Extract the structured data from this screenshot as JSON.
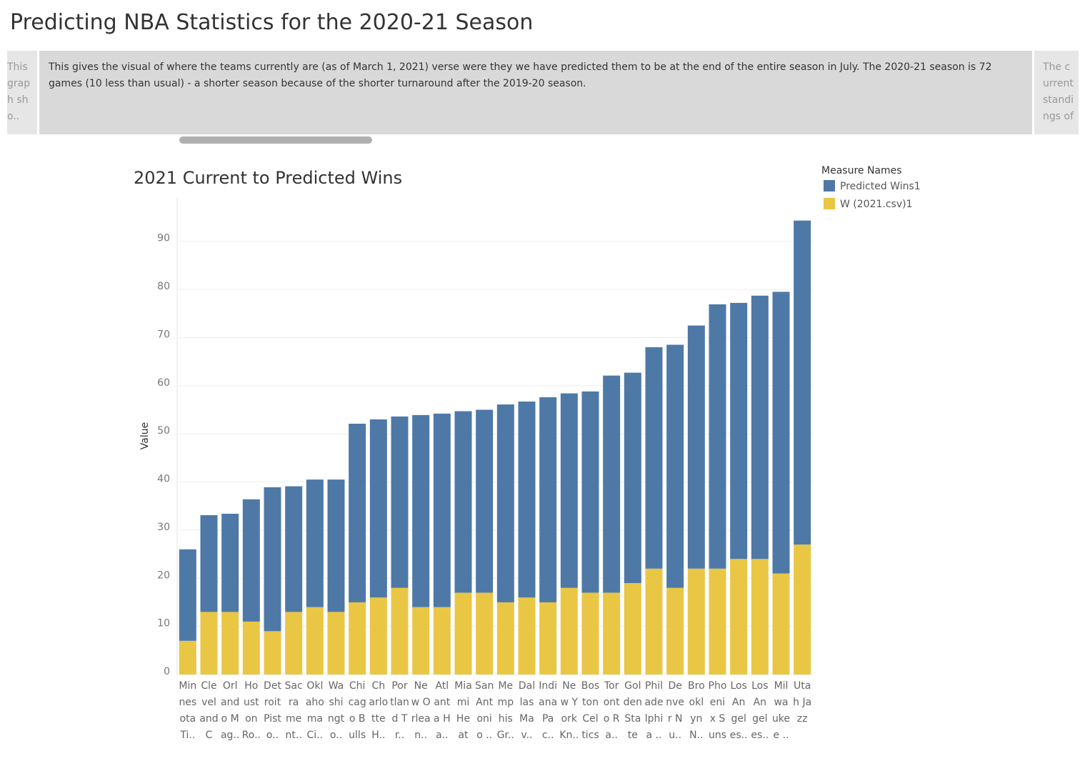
{
  "page_title": "Predicting NBA Statistics for the 2020-21 Season",
  "story_points": [
    "This graph sho..",
    "This gives the visual of where the teams currently are (as of March 1, 2021) verse were they we have  predicted them to be at the end of the entire season in July. The 2020-21 season is 72 games (10 less than usual) - a shorter season because of the shorter turnaround after the 2019-20 season.",
    "The current standings of .."
  ],
  "chart_data": {
    "type": "stacked_bar",
    "title": "2021 Current to Predicted Wins",
    "y_label": "Value",
    "legend_title": "Measure Names",
    "legend_position": "top-right",
    "grid": true,
    "categories": [
      "Minnesota Ti..",
      "Cleveland Ca..",
      "Orlando Mag..",
      "Houston Ro..",
      "Detroit Pisto..",
      "Sacrament..",
      "Oklahoma Ci..",
      "Washingto..",
      "Chicago Bulls",
      "Charlotte H..",
      "Portland Tr..",
      "New Orlean..",
      "Atlanta Ha..",
      "Miami Heat",
      "San Antonio ..",
      "Memphis Gr..",
      "Dallas Mav..",
      "Indiana Pac..",
      "New York Kn..",
      "Boston Celtics",
      "Toronto Ra..",
      "Golden State ..",
      "Philadelphia ..",
      "Denver Nu..",
      "Brooklyn N..",
      "Phoenix Suns",
      "Los Angeles..",
      "Los Angeles..",
      "Milwaukee ..",
      "Utah Jazz"
    ],
    "series": [
      {
        "name": "Predicted Wins1",
        "color": "#4e79a7",
        "values": [
          19.0,
          20.1,
          20.4,
          25.4,
          29.9,
          26.1,
          26.5,
          27.5,
          37.1,
          37.0,
          35.6,
          39.9,
          40.2,
          37.7,
          38.0,
          41.1,
          40.7,
          42.6,
          40.4,
          41.8,
          45.1,
          43.7,
          46.0,
          50.5,
          50.5,
          54.9,
          53.2,
          54.7,
          58.5,
          67.3
        ]
      },
      {
        "name": "W (2021.csv)1",
        "color": "#eac645",
        "values": [
          7,
          13,
          13,
          11,
          9,
          13,
          14,
          13,
          15,
          16,
          18,
          14,
          14,
          17,
          17,
          15,
          16,
          15,
          18,
          17,
          17,
          19,
          22,
          18,
          22,
          22,
          24,
          24,
          21,
          27
        ]
      }
    ],
    "ylim": [
      0,
      99
    ],
    "yticks": [
      0,
      10,
      20,
      30,
      40,
      50,
      60,
      70,
      80,
      90
    ]
  }
}
